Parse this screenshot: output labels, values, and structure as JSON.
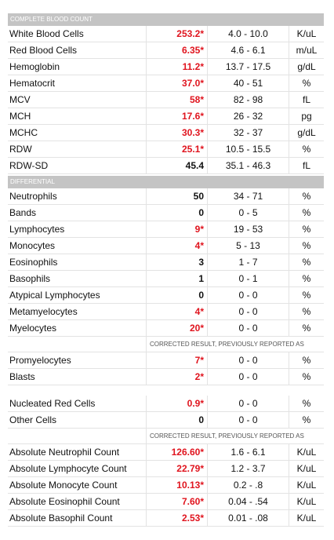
{
  "sections": [
    {
      "title": "COMPLETE BLOOD COUNT",
      "rows": [
        {
          "name": "White Blood Cells",
          "value": "253.2*",
          "range": "4.0 - 10.0",
          "unit": "K/uL"
        },
        {
          "name": "Red Blood Cells",
          "value": "6.35*",
          "range": "4.6 - 6.1",
          "unit": "m/uL"
        },
        {
          "name": "Hemoglobin",
          "value": "11.2*",
          "range": "13.7 - 17.5",
          "unit": "g/dL"
        },
        {
          "name": "Hematocrit",
          "value": "37.0*",
          "range": "40 - 51",
          "unit": "%"
        },
        {
          "name": "MCV",
          "value": "58*",
          "range": "82 - 98",
          "unit": "fL"
        },
        {
          "name": "MCH",
          "value": "17.6*",
          "range": "26 - 32",
          "unit": "pg"
        },
        {
          "name": "MCHC",
          "value": "30.3*",
          "range": "32 - 37",
          "unit": "g/dL"
        },
        {
          "name": "RDW",
          "value": "25.1*",
          "range": "10.5 - 15.5",
          "unit": "%"
        },
        {
          "name": "RDW-SD",
          "value": "45.4",
          "range": "35.1 - 46.3",
          "unit": "fL"
        }
      ]
    },
    {
      "title": "DIFFERENTIAL",
      "rows": [
        {
          "name": "Neutrophils",
          "value": "50",
          "range": "34 - 71",
          "unit": "%"
        },
        {
          "name": "Bands",
          "value": "0",
          "range": "0 - 5",
          "unit": "%"
        },
        {
          "name": "Lymphocytes",
          "value": "9*",
          "range": "19 - 53",
          "unit": "%"
        },
        {
          "name": "Monocytes",
          "value": "4*",
          "range": "5 - 13",
          "unit": "%"
        },
        {
          "name": "Eosinophils",
          "value": "3",
          "range": "1 - 7",
          "unit": "%"
        },
        {
          "name": "Basophils",
          "value": "1",
          "range": "0 - 1",
          "unit": "%"
        },
        {
          "name": "Atypical Lymphocytes",
          "value": "0",
          "range": "0 - 0",
          "unit": "%"
        },
        {
          "name": "Metamyelocytes",
          "value": "4*",
          "range": "0 - 0",
          "unit": "%"
        },
        {
          "name": "Myelocytes",
          "value": "20*",
          "range": "0 - 0",
          "unit": "%"
        },
        {
          "note": "CORRECTED RESULT, PREVIOUSLY REPORTED AS"
        },
        {
          "name": "Promyelocytes",
          "value": "7*",
          "range": "0 - 0",
          "unit": "%"
        },
        {
          "name": "Blasts",
          "value": "2*",
          "range": "0 - 0",
          "unit": "%"
        }
      ]
    },
    {
      "rows": [
        {
          "name": "Nucleated Red Cells",
          "value": "0.9*",
          "range": "0 - 0",
          "unit": "%"
        },
        {
          "name": "Other Cells",
          "value": "0",
          "range": "0 - 0",
          "unit": "%"
        },
        {
          "note": "CORRECTED RESULT, PREVIOUSLY REPORTED AS"
        },
        {
          "name": "Absolute Neutrophil Count",
          "value": "126.60*",
          "range": "1.6 - 6.1",
          "unit": "K/uL"
        },
        {
          "name": "Absolute Lymphocyte Count",
          "value": "22.79*",
          "range": "1.2 - 3.7",
          "unit": "K/uL"
        },
        {
          "name": "Absolute Monocyte Count",
          "value": "10.13*",
          "range": "0.2 - .8",
          "unit": "K/uL"
        },
        {
          "name": "Absolute Eosinophil Count",
          "value": "7.60*",
          "range": "0.04 - .54",
          "unit": "K/uL"
        },
        {
          "name": "Absolute Basophil Count",
          "value": "2.53*",
          "range": "0.01 - .08",
          "unit": "K/uL"
        }
      ]
    }
  ]
}
